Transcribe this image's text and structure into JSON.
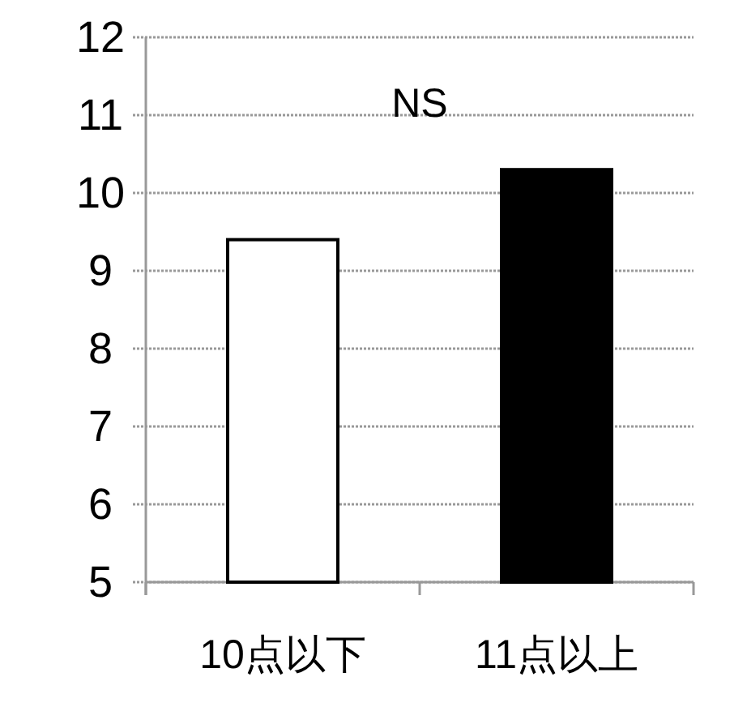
{
  "chart_data": {
    "type": "bar",
    "categories": [
      "10点以下",
      "11点以上"
    ],
    "values": [
      9.4,
      10.3
    ],
    "colors": [
      "#ffffff",
      "#000000"
    ],
    "ylim": [
      5,
      12
    ],
    "yticks": [
      5,
      6,
      7,
      8,
      9,
      10,
      11,
      12
    ],
    "grid": "y",
    "annotations": [
      "NS"
    ]
  }
}
